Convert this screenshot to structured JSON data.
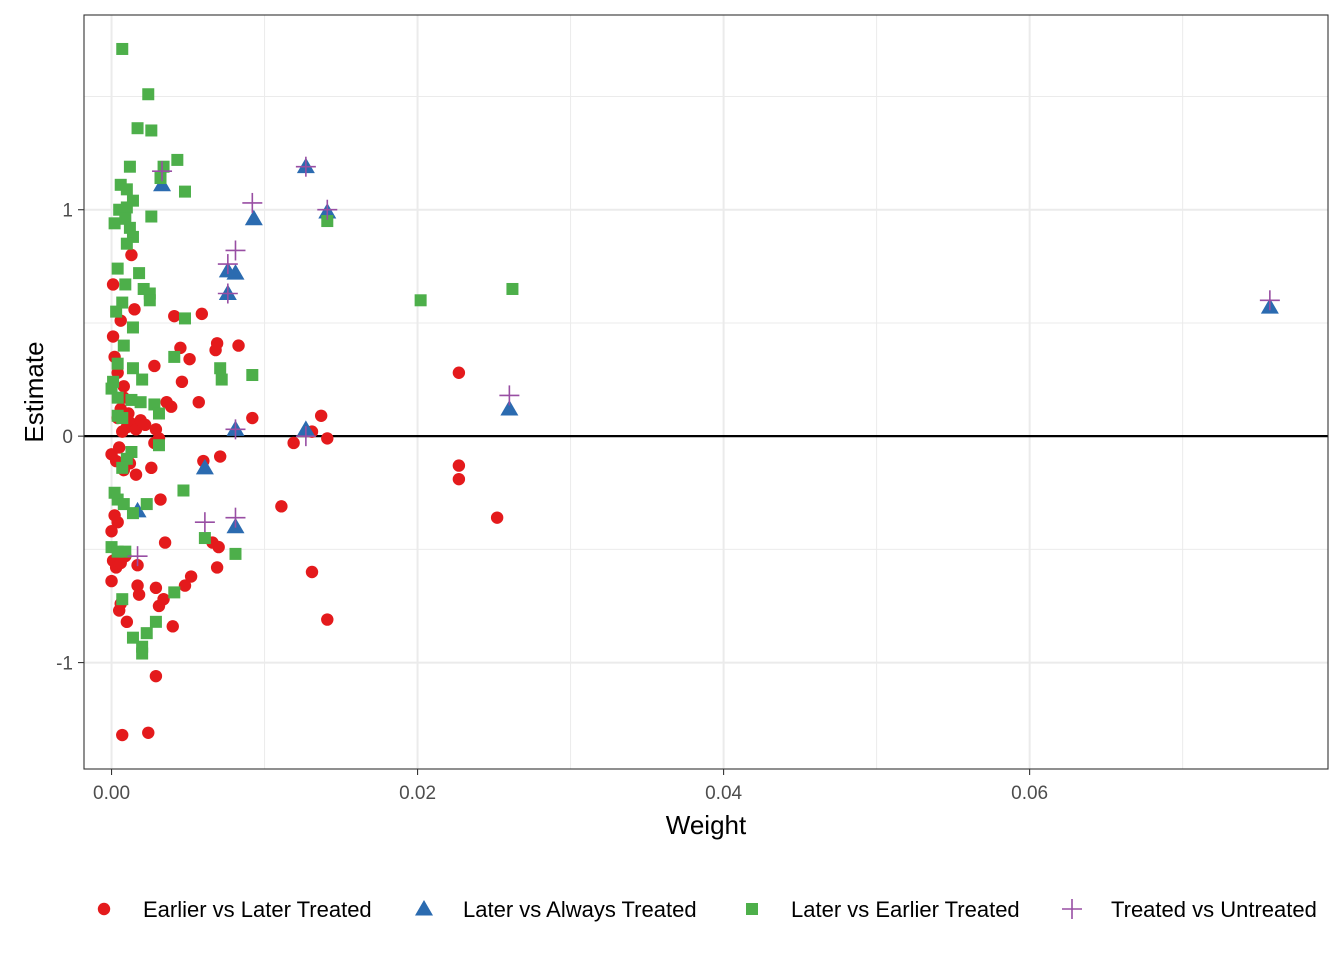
{
  "chart_data": {
    "type": "scatter",
    "title": "",
    "xlabel": "Weight",
    "ylabel": "Estimate",
    "xlim": [
      -0.0018,
      0.0795
    ],
    "ylim": [
      -1.47,
      1.86
    ],
    "x_ticks": [
      0.0,
      0.02,
      0.04,
      0.06
    ],
    "x_tick_labels": [
      "0.00",
      "0.02",
      "0.04",
      "0.06"
    ],
    "y_ticks": [
      -1,
      0,
      1
    ],
    "y_tick_labels": [
      "-1",
      "0",
      "1"
    ],
    "grid": true,
    "reference_line": {
      "axis": "y",
      "value": 0
    },
    "legend_position": "bottom",
    "series": [
      {
        "name": "Earlier vs Later Treated",
        "marker": "circle",
        "color": "#E41A1C",
        "points": [
          [
            0.0001,
            0.67
          ],
          [
            0.0001,
            0.44
          ],
          [
            0.0002,
            0.35
          ],
          [
            0.0004,
            0.28
          ],
          [
            0.0006,
            0.51
          ],
          [
            0.0008,
            0.22
          ],
          [
            0.0011,
            0.1
          ],
          [
            0.0013,
            0.8
          ],
          [
            0.0015,
            0.56
          ],
          [
            0.0008,
            0.17
          ],
          [
            0.0004,
            0.08
          ],
          [
            0.0006,
            0.12
          ],
          [
            0.001,
            0.04
          ],
          [
            0.0007,
            0.02
          ],
          [
            0.0012,
            0.06
          ],
          [
            0.0016,
            0.03
          ],
          [
            0.0019,
            0.07
          ],
          [
            0.0022,
            0.05
          ],
          [
            0.0028,
            0.31
          ],
          [
            0.0041,
            0.53
          ],
          [
            0.0059,
            0.54
          ],
          [
            0.0045,
            0.39
          ],
          [
            0.0051,
            0.34
          ],
          [
            0.0046,
            0.24
          ],
          [
            0.0039,
            0.13
          ],
          [
            0.0036,
            0.15
          ],
          [
            0.0057,
            0.15
          ],
          [
            0.0069,
            0.41
          ],
          [
            0.0068,
            0.38
          ],
          [
            0.0083,
            0.4
          ],
          [
            0.0092,
            0.08
          ],
          [
            0.0029,
            0.03
          ],
          [
            0.0028,
            -0.03
          ],
          [
            0.0031,
            -0.01
          ],
          [
            0.0,
            -0.08
          ],
          [
            0.0003,
            -0.11
          ],
          [
            0.0005,
            -0.05
          ],
          [
            0.0008,
            -0.15
          ],
          [
            0.0012,
            -0.12
          ],
          [
            0.0016,
            -0.17
          ],
          [
            0.0026,
            -0.14
          ],
          [
            0.006,
            -0.11
          ],
          [
            0.0071,
            -0.09
          ],
          [
            0.0032,
            -0.28
          ],
          [
            0.0035,
            -0.47
          ],
          [
            0.0066,
            -0.47
          ],
          [
            0.007,
            -0.49
          ],
          [
            0.0002,
            -0.35
          ],
          [
            0.0004,
            -0.38
          ],
          [
            0.0,
            -0.42
          ],
          [
            0.0001,
            -0.55
          ],
          [
            0.0003,
            -0.58
          ],
          [
            0.0006,
            -0.56
          ],
          [
            0.0009,
            -0.53
          ],
          [
            0.0017,
            -0.57
          ],
          [
            0.0,
            -0.64
          ],
          [
            0.0006,
            -0.74
          ],
          [
            0.0005,
            -0.77
          ],
          [
            0.001,
            -0.82
          ],
          [
            0.0017,
            -0.66
          ],
          [
            0.0018,
            -0.7
          ],
          [
            0.0029,
            -0.67
          ],
          [
            0.0031,
            -0.75
          ],
          [
            0.0034,
            -0.72
          ],
          [
            0.004,
            -0.84
          ],
          [
            0.0048,
            -0.66
          ],
          [
            0.0052,
            -0.62
          ],
          [
            0.0069,
            -0.58
          ],
          [
            0.0029,
            -1.06
          ],
          [
            0.0007,
            -1.32
          ],
          [
            0.0024,
            -1.31
          ],
          [
            0.0111,
            -0.31
          ],
          [
            0.0119,
            -0.03
          ],
          [
            0.0131,
            0.02
          ],
          [
            0.0137,
            0.09
          ],
          [
            0.0141,
            -0.01
          ],
          [
            0.0131,
            -0.6
          ],
          [
            0.0141,
            -0.81
          ],
          [
            0.0227,
            0.28
          ],
          [
            0.0227,
            -0.13
          ],
          [
            0.0227,
            -0.19
          ],
          [
            0.0252,
            -0.36
          ]
        ]
      },
      {
        "name": "Later vs Always Treated",
        "marker": "triangle",
        "color": "#2B6BB0",
        "points": [
          [
            0.0033,
            1.11
          ],
          [
            0.0127,
            1.19
          ],
          [
            0.0141,
            0.99
          ],
          [
            0.0093,
            0.96
          ],
          [
            0.0076,
            0.73
          ],
          [
            0.0081,
            0.72
          ],
          [
            0.0076,
            0.63
          ],
          [
            0.0081,
            0.03
          ],
          [
            0.0127,
            0.03
          ],
          [
            0.0061,
            -0.14
          ],
          [
            0.0017,
            -0.33
          ],
          [
            0.0081,
            -0.4
          ],
          [
            0.026,
            0.12
          ],
          [
            0.0757,
            0.57
          ]
        ]
      },
      {
        "name": "Later vs Earlier Treated",
        "marker": "square",
        "color": "#4DAF4A",
        "points": [
          [
            0.0007,
            1.71
          ],
          [
            0.0024,
            1.51
          ],
          [
            0.0017,
            1.36
          ],
          [
            0.0026,
            1.35
          ],
          [
            0.0043,
            1.22
          ],
          [
            0.0012,
            1.19
          ],
          [
            0.0034,
            1.19
          ],
          [
            0.0032,
            1.14
          ],
          [
            0.0006,
            1.11
          ],
          [
            0.001,
            1.09
          ],
          [
            0.0048,
            1.08
          ],
          [
            0.0014,
            1.04
          ],
          [
            0.001,
            1.01
          ],
          [
            0.0005,
            1.0
          ],
          [
            0.0002,
            0.94
          ],
          [
            0.0026,
            0.97
          ],
          [
            0.0009,
            0.96
          ],
          [
            0.0012,
            0.92
          ],
          [
            0.0014,
            0.88
          ],
          [
            0.001,
            0.85
          ],
          [
            0.0004,
            0.74
          ],
          [
            0.0018,
            0.72
          ],
          [
            0.0009,
            0.67
          ],
          [
            0.0021,
            0.65
          ],
          [
            0.0025,
            0.63
          ],
          [
            0.0025,
            0.6
          ],
          [
            0.0007,
            0.59
          ],
          [
            0.0003,
            0.55
          ],
          [
            0.0048,
            0.52
          ],
          [
            0.0014,
            0.48
          ],
          [
            0.0008,
            0.4
          ],
          [
            0.0004,
            0.32
          ],
          [
            0.0014,
            0.3
          ],
          [
            0.0041,
            0.35
          ],
          [
            0.0071,
            0.3
          ],
          [
            0.0072,
            0.25
          ],
          [
            0.0092,
            0.27
          ],
          [
            0.002,
            0.25
          ],
          [
            0.0001,
            0.24
          ],
          [
            0.0,
            0.21
          ],
          [
            0.0004,
            0.17
          ],
          [
            0.0013,
            0.16
          ],
          [
            0.0019,
            0.15
          ],
          [
            0.0028,
            0.14
          ],
          [
            0.0031,
            0.1
          ],
          [
            0.0004,
            0.09
          ],
          [
            0.0007,
            0.08
          ],
          [
            0.0031,
            -0.04
          ],
          [
            0.0013,
            -0.07
          ],
          [
            0.001,
            -0.1
          ],
          [
            0.0007,
            -0.14
          ],
          [
            0.0002,
            -0.25
          ],
          [
            0.0004,
            -0.28
          ],
          [
            0.0008,
            -0.3
          ],
          [
            0.0023,
            -0.3
          ],
          [
            0.0014,
            -0.34
          ],
          [
            0.0047,
            -0.24
          ],
          [
            0.0,
            -0.49
          ],
          [
            0.0004,
            -0.51
          ],
          [
            0.0009,
            -0.51
          ],
          [
            0.0061,
            -0.45
          ],
          [
            0.0081,
            -0.52
          ],
          [
            0.0007,
            -0.72
          ],
          [
            0.0041,
            -0.69
          ],
          [
            0.0029,
            -0.82
          ],
          [
            0.0023,
            -0.87
          ],
          [
            0.0014,
            -0.89
          ],
          [
            0.002,
            -0.93
          ],
          [
            0.002,
            -0.96
          ],
          [
            0.0202,
            0.6
          ],
          [
            0.0262,
            0.65
          ],
          [
            0.0141,
            0.95
          ]
        ]
      },
      {
        "name": "Treated vs Untreated",
        "marker": "plus",
        "color": "#984EA3",
        "points": [
          [
            0.0127,
            1.19
          ],
          [
            0.0141,
            1.0
          ],
          [
            0.0092,
            1.03
          ],
          [
            0.0081,
            0.82
          ],
          [
            0.0076,
            0.76
          ],
          [
            0.0076,
            0.63
          ],
          [
            0.0081,
            0.03
          ],
          [
            0.0127,
            0.0
          ],
          [
            0.0061,
            -0.38
          ],
          [
            0.0081,
            -0.36
          ],
          [
            0.0017,
            -0.53
          ],
          [
            0.026,
            0.18
          ],
          [
            0.0757,
            0.6
          ],
          [
            0.0033,
            1.17
          ]
        ]
      }
    ]
  }
}
